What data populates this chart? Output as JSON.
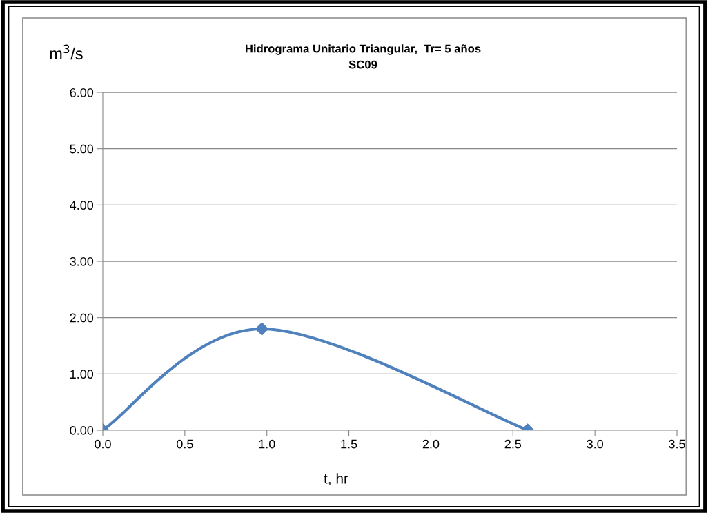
{
  "chart_data": {
    "type": "line",
    "title": "Hidrograma Unitario Triangular,  Tr= 5 años",
    "subtitle": "SC09",
    "xlabel": "t, hr",
    "ylabel": "m$^{3}$/s",
    "x": [
      0,
      0.97,
      2.59
    ],
    "series": [
      {
        "color": "#4f81bd",
        "values": [
          0,
          1.8,
          0
        ]
      }
    ],
    "marker": "diamond",
    "line_style": "solid",
    "grid": "y",
    "legend": false,
    "xlim": [
      0,
      3.5
    ],
    "xticks": [
      {
        "value": 0,
        "label": "0.0"
      },
      {
        "value": 0.5,
        "label": "0.5"
      },
      {
        "value": 1,
        "label": "1.0"
      },
      {
        "value": 1.5,
        "label": "1.5"
      },
      {
        "value": 2,
        "label": "2.0"
      },
      {
        "value": 2.5,
        "label": "2.5"
      },
      {
        "value": 3,
        "label": "3.0"
      },
      {
        "value": 3.5,
        "label": "3.5"
      }
    ],
    "ylim": [
      0,
      6
    ],
    "yticks": [
      {
        "value": 0,
        "label": "0.00"
      },
      {
        "value": 1,
        "label": "1.00"
      },
      {
        "value": 2,
        "label": "2.00"
      },
      {
        "value": 3,
        "label": "3.00"
      },
      {
        "value": 4,
        "label": "4.00"
      },
      {
        "value": 5,
        "label": "5.00"
      },
      {
        "value": 6,
        "label": "6.00"
      }
    ]
  }
}
